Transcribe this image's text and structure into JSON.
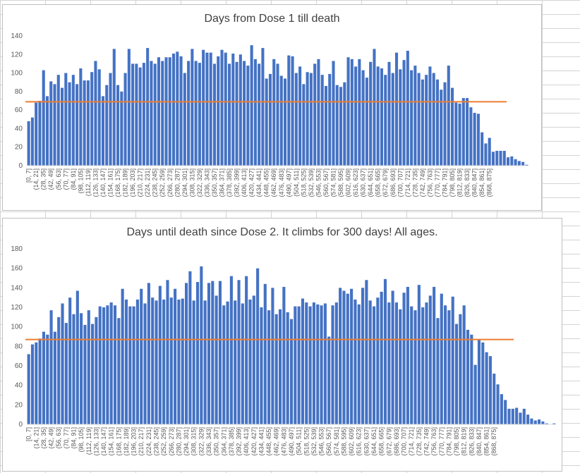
{
  "chart_data": [
    {
      "type": "bar",
      "title": "Days from Dose 1 till death",
      "xlabel": "",
      "ylabel": "",
      "ylim": [
        0,
        140
      ],
      "yticks": [
        0,
        20,
        40,
        60,
        80,
        100,
        120,
        140
      ],
      "bar_color": "#4472c4",
      "reference_line": {
        "value": 69,
        "color": "#ed7d31"
      },
      "gridlines": false,
      "tick_labels": [
        "[0, 7]",
        "(14, 21]",
        "(28, 35]",
        "(42, 49]",
        "(56, 63]",
        "(70, 77]",
        "(84, 91]",
        "(98, 105]",
        "(112, 119]",
        "(126, 133]",
        "(140, 147]",
        "(154, 161]",
        "(168, 175]",
        "(182, 189]",
        "(196, 203]",
        "(210, 217]",
        "(224, 231]",
        "(238, 245]",
        "(252, 259]",
        "(266, 273]",
        "(280, 287]",
        "(294, 301]",
        "(308, 315]",
        "(322, 329]",
        "(336, 343]",
        "(350, 357]",
        "(364, 371]",
        "(378, 385]",
        "(392, 399]",
        "(406, 413]",
        "(420, 427]",
        "(434, 441]",
        "(448, 455]",
        "(462, 469]",
        "(476, 483]",
        "(490, 497]",
        "(504, 511]",
        "(518, 525]",
        "(532, 539]",
        "(546, 553]",
        "(560, 567]",
        "(574, 581]",
        "(588, 595]",
        "(602, 609]",
        "(616, 623]",
        "(630, 637]",
        "(644, 651]",
        "(658, 665]",
        "(672, 679]",
        "(686, 693]",
        "(700, 707]",
        "(714, 721]",
        "(728, 735]",
        "(742, 749]",
        "(756, 763]",
        "(770, 777]",
        "(784, 791]",
        "(798, 805]",
        "(812, 819]",
        "(826, 833]",
        "(840, 847]",
        "(854, 861]",
        "(868, 875]"
      ],
      "values": [
        48,
        52,
        68,
        70,
        103,
        75,
        91,
        88,
        98,
        84,
        100,
        90,
        98,
        88,
        105,
        92,
        92,
        101,
        113,
        104,
        75,
        87,
        100,
        126,
        87,
        80,
        100,
        126,
        110,
        110,
        106,
        111,
        127,
        113,
        110,
        117,
        113,
        117,
        117,
        121,
        123,
        118,
        100,
        113,
        126,
        113,
        111,
        125,
        122,
        122,
        110,
        118,
        125,
        122,
        110,
        121,
        112,
        120,
        113,
        108,
        130,
        115,
        110,
        127,
        94,
        99,
        115,
        110,
        97,
        94,
        119,
        118,
        100,
        107,
        88,
        101,
        100,
        110,
        115,
        98,
        86,
        99,
        113,
        87,
        85,
        90,
        117,
        115,
        107,
        115,
        103,
        95,
        112,
        126,
        107,
        105,
        98,
        112,
        100,
        122,
        104,
        114,
        124,
        103,
        108,
        100,
        93,
        98,
        107,
        100,
        93,
        82,
        90,
        108,
        84,
        68,
        67,
        73,
        73,
        63,
        57,
        56,
        36,
        24,
        30,
        15,
        16,
        16,
        16,
        9,
        10,
        7,
        5,
        4,
        1
      ]
    },
    {
      "type": "bar",
      "title": "Days until death since Dose 2. It climbs for 300 days! All ages.",
      "xlabel": "",
      "ylabel": "",
      "ylim": [
        0,
        180
      ],
      "yticks": [
        0,
        20,
        40,
        60,
        80,
        100,
        120,
        140,
        160,
        180
      ],
      "bar_color": "#4472c4",
      "reference_line": {
        "value": 87,
        "color": "#ed7d31"
      },
      "gridlines": false,
      "tick_labels": [
        "[0, 7]",
        "(14, 21]",
        "(28, 35]",
        "(42, 49]",
        "(56, 63]",
        "(70, 77]",
        "(84, 91]",
        "(98, 105]",
        "(112, 119]",
        "(126, 133]",
        "(140, 147]",
        "(154, 161]",
        "(168, 175]",
        "(182, 189]",
        "(196, 203]",
        "(210, 217]",
        "(224, 231]",
        "(238, 245]",
        "(252, 259]",
        "(266, 273]",
        "(280, 287]",
        "(294, 301]",
        "(308, 315]",
        "(322, 329]",
        "(336, 343]",
        "(350, 357]",
        "(364, 371]",
        "(378, 385]",
        "(392, 399]",
        "(406, 413]",
        "(420, 427]",
        "(434, 441]",
        "(448, 455]",
        "(462, 469]",
        "(476, 483]",
        "(490, 497]",
        "(504, 511]",
        "(518, 525]",
        "(532, 539]",
        "(546, 553]",
        "(560, 567]",
        "(574, 581]",
        "(588, 595]",
        "(602, 609]",
        "(616, 623]",
        "(630, 637]",
        "(644, 651]",
        "(658, 665]",
        "(672, 679]",
        "(686, 693]",
        "(700, 707]",
        "(714, 721]",
        "(728, 735]",
        "(742, 749]",
        "(756, 763]",
        "(770, 777]",
        "(784, 791]",
        "(798, 805]",
        "(812, 819]",
        "(826, 833]",
        "(840, 847]",
        "(854, 861]",
        "(868, 875]"
      ],
      "values": [
        72,
        82,
        84,
        88,
        95,
        92,
        117,
        95,
        110,
        124,
        104,
        130,
        113,
        137,
        114,
        102,
        117,
        103,
        110,
        121,
        120,
        122,
        125,
        122,
        109,
        139,
        128,
        121,
        121,
        128,
        139,
        124,
        145,
        130,
        127,
        142,
        128,
        148,
        130,
        139,
        128,
        129,
        145,
        157,
        127,
        146,
        162,
        127,
        145,
        147,
        132,
        147,
        122,
        126,
        152,
        127,
        148,
        124,
        152,
        128,
        132,
        160,
        120,
        144,
        117,
        140,
        113,
        118,
        141,
        115,
        108,
        121,
        121,
        129,
        125,
        121,
        125,
        123,
        122,
        124,
        90,
        122,
        125,
        140,
        137,
        134,
        139,
        128,
        123,
        140,
        148,
        127,
        121,
        130,
        136,
        149,
        125,
        137,
        125,
        118,
        135,
        141,
        121,
        117,
        143,
        120,
        125,
        132,
        141,
        109,
        134,
        122,
        117,
        131,
        103,
        113,
        122,
        97,
        92,
        61,
        87,
        84,
        74,
        70,
        52,
        41,
        31,
        25,
        16,
        16,
        17,
        12,
        16,
        10,
        6,
        4,
        5,
        3,
        1,
        0,
        1
      ]
    }
  ]
}
